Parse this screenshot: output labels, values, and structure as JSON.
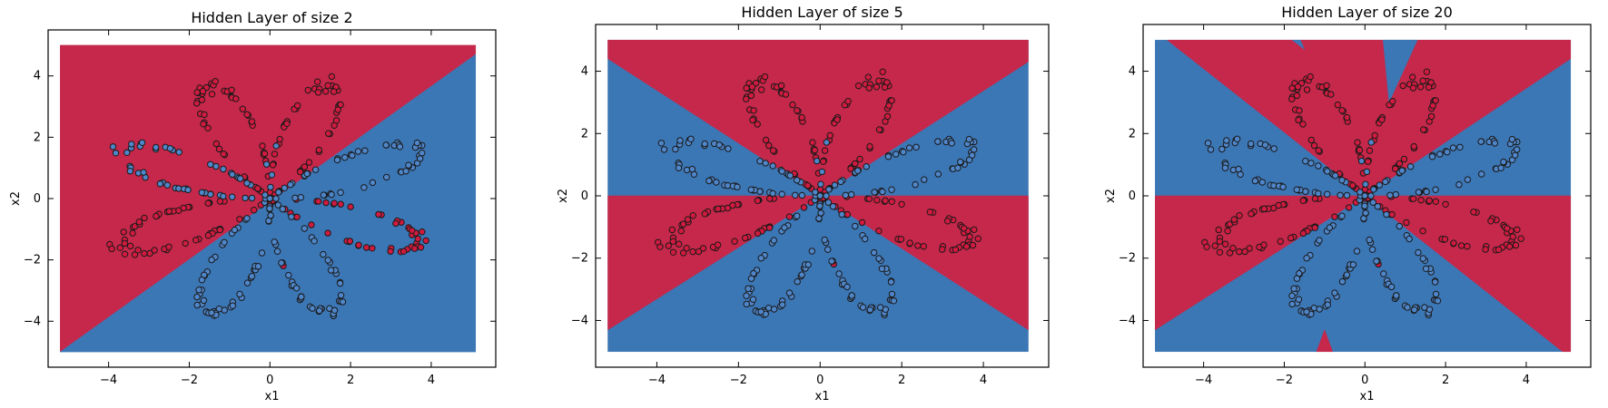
{
  "chart_data": [
    {
      "type": "scatter",
      "title": "Hidden Layer of size 2",
      "xlabel": "x1",
      "ylabel": "x2",
      "xlim": [
        -5.5,
        5.6
      ],
      "ylim": [
        -5.5,
        5.5
      ],
      "xticks": [
        -4,
        -2,
        0,
        2,
        4
      ],
      "yticks": [
        -4,
        -2,
        0,
        2,
        4
      ],
      "grid": false,
      "background_colors": {
        "red": "#c5284a",
        "blue": "#3b76b5"
      },
      "decision_regions": [
        {
          "color": "red",
          "polygon": [
            [
              -5.2,
              5
            ],
            [
              5.1,
              5
            ],
            [
              5.1,
              4.7
            ],
            [
              -5.2,
              -5
            ]
          ]
        },
        {
          "color": "blue",
          "polygon": [
            [
              -5.2,
              -5
            ],
            [
              5.1,
              4.7
            ],
            [
              5.1,
              -5
            ]
          ]
        }
      ],
      "data_description": "flower-shaped two-class point cloud (about 400 points)"
    },
    {
      "type": "scatter",
      "title": "Hidden Layer of size 5",
      "xlabel": "x1",
      "ylabel": "x2",
      "xlim": [
        -5.5,
        5.6
      ],
      "ylim": [
        -5.5,
        5.5
      ],
      "xticks": [
        -4,
        -2,
        0,
        2,
        4
      ],
      "yticks": [
        -4,
        -2,
        0,
        2,
        4
      ],
      "grid": false,
      "background_colors": {
        "red": "#c5284a",
        "blue": "#3b76b5"
      },
      "decision_regions": [
        {
          "color": "blue",
          "polygon": [
            [
              -5.2,
              0
            ],
            [
              -5.2,
              5
            ],
            [
              5.1,
              5
            ],
            [
              5.1,
              -5
            ],
            [
              -5.2,
              -5
            ]
          ]
        },
        {
          "color": "red",
          "polygon": [
            [
              -5.2,
              5
            ],
            [
              5.1,
              5
            ],
            [
              5.1,
              4.3
            ],
            [
              0,
              0
            ],
            [
              -5.2,
              4.4
            ]
          ]
        },
        {
          "color": "red",
          "polygon": [
            [
              -5.2,
              0
            ],
            [
              0,
              0
            ],
            [
              -5.2,
              -4.3
            ]
          ]
        },
        {
          "color": "red",
          "polygon": [
            [
              0,
              0
            ],
            [
              5.1,
              0
            ],
            [
              5.1,
              -4.3
            ]
          ]
        }
      ]
    },
    {
      "type": "scatter",
      "title": "Hidden Layer of size 20",
      "xlabel": "x1",
      "ylabel": "x2",
      "xlim": [
        -5.5,
        5.6
      ],
      "ylim": [
        -5.5,
        5.5
      ],
      "xticks": [
        -4,
        -2,
        0,
        2,
        4
      ],
      "yticks": [
        -4,
        -2,
        0,
        2,
        4
      ],
      "grid": false,
      "background_colors": {
        "red": "#c5284a",
        "blue": "#3b76b5"
      },
      "decision_regions": [
        {
          "color": "blue",
          "polygon": [
            [
              -5.2,
              -5
            ],
            [
              -5.2,
              5
            ],
            [
              5.1,
              5
            ],
            [
              5.1,
              -5
            ]
          ]
        },
        {
          "color": "red",
          "polygon": [
            [
              -4.9,
              5
            ],
            [
              5.1,
              5
            ],
            [
              5.1,
              4.4
            ],
            [
              0,
              0
            ]
          ]
        },
        {
          "color": "red",
          "polygon": [
            [
              -5.2,
              0
            ],
            [
              0,
              0
            ],
            [
              -5.2,
              -4.3
            ]
          ]
        },
        {
          "color": "red",
          "polygon": [
            [
              0,
              0
            ],
            [
              5.1,
              0
            ],
            [
              5.1,
              -5
            ],
            [
              4.9,
              -5
            ]
          ]
        },
        {
          "color": "blue",
          "polygon": [
            [
              -1.8,
              5
            ],
            [
              -1.6,
              5
            ],
            [
              -1.5,
              4.7
            ]
          ]
        },
        {
          "color": "blue",
          "polygon": [
            [
              0.45,
              5
            ],
            [
              1.3,
              5
            ],
            [
              0.6,
              3.0
            ]
          ]
        },
        {
          "color": "red",
          "polygon": [
            [
              -1.2,
              -5
            ],
            [
              -0.8,
              -5
            ],
            [
              -1.0,
              -4.3
            ]
          ]
        }
      ]
    }
  ]
}
